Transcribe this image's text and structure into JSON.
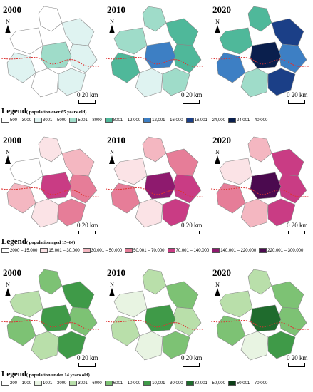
{
  "panels": [
    {
      "years": [
        "2000",
        "2010",
        "2020"
      ],
      "legend_title": "Legend",
      "legend_subtitle": "( population over 65 years old)",
      "classes": [
        {
          "label": "500 – 3000",
          "color": "#ffffff"
        },
        {
          "label": "3001 – 5000",
          "color": "#dff3f1"
        },
        {
          "label": "5001 – 8000",
          "color": "#9fdcc9"
        },
        {
          "label": "8001 – 12,000",
          "color": "#4fb89a"
        },
        {
          "label": "12,001 – 16,000",
          "color": "#3d7fc4"
        },
        {
          "label": "16,001 – 24,000",
          "color": "#1b3f87"
        },
        {
          "label": "24,001 – 40,000",
          "color": "#0a1f4d"
        }
      ],
      "year_fills": [
        [
          "#ffffff",
          "#dff3f1",
          "#dff3f1",
          "#ffffff",
          "#9fdcc9",
          "#dff3f1",
          "#ffffff",
          "#dff3f1"
        ],
        [
          "#9fdcc9",
          "#4fb89a",
          "#4fb89a",
          "#9fdcc9",
          "#3d7fc4",
          "#4fb89a",
          "#dff3f1",
          "#9fdcc9"
        ],
        [
          "#4fb89a",
          "#1b3f87",
          "#3d7fc4",
          "#4fb89a",
          "#0a1f4d",
          "#3d7fc4",
          "#9fdcc9",
          "#1b3f87"
        ]
      ]
    },
    {
      "years": [
        "2000",
        "2010",
        "2020"
      ],
      "legend_title": "Legend",
      "legend_subtitle": "( population aged 15–64)",
      "classes": [
        {
          "label": "2000 – 15,000",
          "color": "#ffffff"
        },
        {
          "label": "15,001 – 30,000",
          "color": "#fbe3e6"
        },
        {
          "label": "30,001 – 50,000",
          "color": "#f4b7c1"
        },
        {
          "label": "50,001 – 70,000",
          "color": "#e67d98"
        },
        {
          "label": "70,001 – 140,000",
          "color": "#c93c84"
        },
        {
          "label": "140,001 – 220,000",
          "color": "#8e1a6e"
        },
        {
          "label": "220,001 – 300,000",
          "color": "#4b0a4f"
        }
      ],
      "year_fills": [
        [
          "#fbe3e6",
          "#f4b7c1",
          "#e67d98",
          "#ffffff",
          "#c93c84",
          "#f4b7c1",
          "#fbe3e6",
          "#e67d98"
        ],
        [
          "#f4b7c1",
          "#e67d98",
          "#c93c84",
          "#fbe3e6",
          "#8e1a6e",
          "#e67d98",
          "#fbe3e6",
          "#c93c84"
        ],
        [
          "#f4b7c1",
          "#c93c84",
          "#c93c84",
          "#fbe3e6",
          "#4b0a4f",
          "#e67d98",
          "#f4b7c1",
          "#c93c84"
        ]
      ]
    },
    {
      "years": [
        "2000",
        "2010",
        "2020"
      ],
      "legend_title": "Legend",
      "legend_subtitle": "( population under 14 years old)",
      "classes": [
        {
          "label": "200 – 1000",
          "color": "#ffffff"
        },
        {
          "label": "1001 – 3000",
          "color": "#e8f4e2"
        },
        {
          "label": "3001 – 6000",
          "color": "#b9dfaa"
        },
        {
          "label": "6001 – 10,000",
          "color": "#7dc274"
        },
        {
          "label": "10,001 – 30,000",
          "color": "#3f9a48"
        },
        {
          "label": "30,001 – 50,000",
          "color": "#1f6b2d"
        },
        {
          "label": "50,001 – 70,000",
          "color": "#0b3d16"
        }
      ],
      "year_fills": [
        [
          "#7dc274",
          "#3f9a48",
          "#7dc274",
          "#b9dfaa",
          "#3f9a48",
          "#7dc274",
          "#b9dfaa",
          "#3f9a48"
        ],
        [
          "#b9dfaa",
          "#7dc274",
          "#b9dfaa",
          "#e8f4e2",
          "#3f9a48",
          "#b9dfaa",
          "#e8f4e2",
          "#7dc274"
        ],
        [
          "#b9dfaa",
          "#7dc274",
          "#7dc274",
          "#b9dfaa",
          "#1f6b2d",
          "#7dc274",
          "#e8f4e2",
          "#3f9a48"
        ]
      ]
    }
  ],
  "scale_label": "20 km",
  "scale_zero": "0",
  "north_label": "N"
}
